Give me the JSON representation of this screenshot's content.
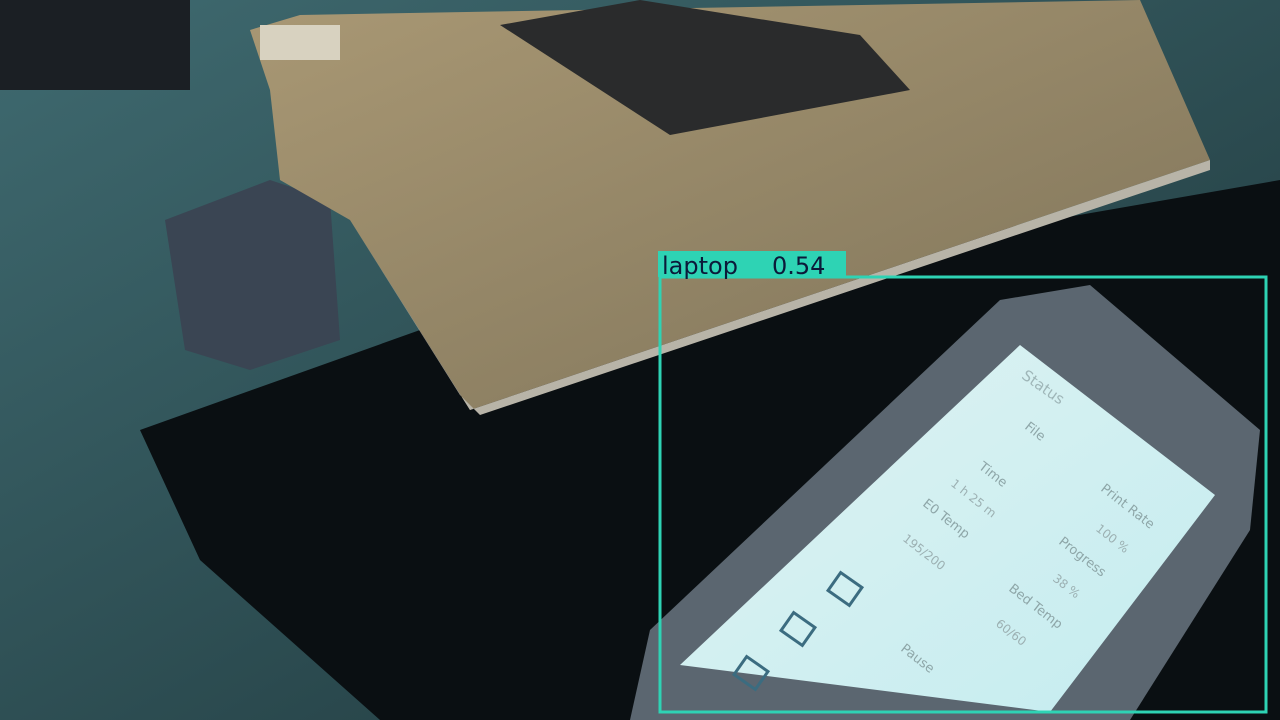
{
  "detections": [
    {
      "label": "laptop",
      "score": 0.54
    }
  ],
  "screen": {
    "title": "Status",
    "fields": [
      {
        "label": "File"
      },
      {
        "label": "Time",
        "value": "1 h 25 m"
      },
      {
        "label": "Print Rate",
        "value": "100 %"
      },
      {
        "label": "E0 Temp",
        "value": "195/200"
      },
      {
        "label": "Progress",
        "value": "38 %"
      },
      {
        "label": "Bed Temp",
        "value": "60/60"
      }
    ],
    "button": "Pause"
  }
}
